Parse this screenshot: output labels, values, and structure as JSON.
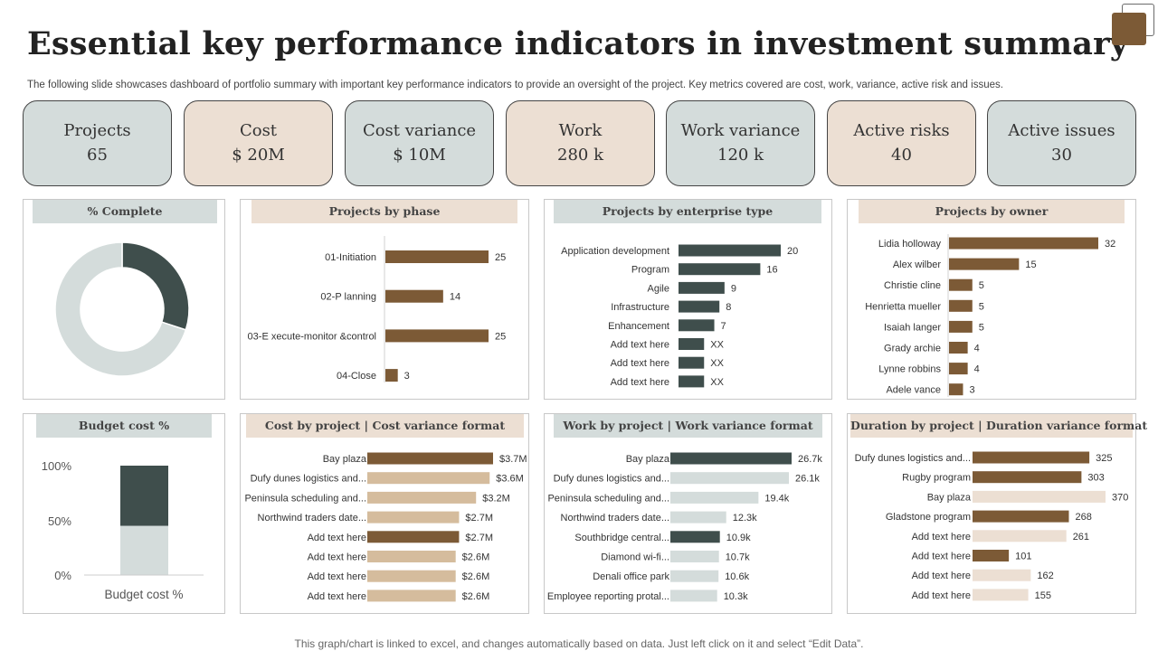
{
  "header": {
    "title": "Essential key performance indicators in investment summary",
    "subtitle": "The following slide showcases dashboard of portfolio summary with important key performance indicators to provide an oversight of the project. Key metrics covered are cost, work, variance, active risk and issues."
  },
  "kpis": [
    {
      "label": "Projects",
      "value": "65",
      "tone": "gray"
    },
    {
      "label": "Cost",
      "value": "$ 20M",
      "tone": "tan"
    },
    {
      "label": "Cost variance",
      "value": "$ 10M",
      "tone": "gray"
    },
    {
      "label": "Work",
      "value": "280 k",
      "tone": "tan"
    },
    {
      "label": "Work variance",
      "value": "120 k",
      "tone": "gray"
    },
    {
      "label": "Active risks",
      "value": "40",
      "tone": "tan"
    },
    {
      "label": "Active issues",
      "value": "30",
      "tone": "gray"
    }
  ],
  "colors": {
    "dark": "#3f4e4c",
    "brown": "#7c5a36",
    "lightgray": "#d4dcdb",
    "tan": "#d5bc9d",
    "lighttan": "#ecdfd3"
  },
  "chart_data": [
    {
      "id": "complete",
      "type": "pie",
      "title": "% Complete",
      "values": [
        30,
        70
      ],
      "colors": [
        "#3f4e4c",
        "#d4dcdb"
      ]
    },
    {
      "id": "phase",
      "type": "bar",
      "title": "Projects by phase",
      "categories": [
        "01-Initiation",
        "02-P lanning",
        "03-E xecute-monitor &control",
        "04-Close"
      ],
      "values": [
        25,
        14,
        25,
        3
      ],
      "labels": [
        "25",
        "14",
        "25",
        "3"
      ],
      "color": "#7c5a36",
      "xlim": [
        0,
        25
      ]
    },
    {
      "id": "enterprise",
      "type": "bar",
      "title": "Projects by enterprise type",
      "categories": [
        "Application development",
        "Program",
        "Agile",
        "Infrastructure",
        "Enhancement",
        "Add text here",
        "Add text here",
        "Add text here"
      ],
      "values": [
        20,
        16,
        9,
        8,
        7,
        5,
        5,
        5
      ],
      "labels": [
        "20",
        "16",
        "9",
        "8",
        "7",
        "XX",
        "XX",
        "XX"
      ],
      "color": "#3f4e4c",
      "xlim": [
        0,
        20
      ]
    },
    {
      "id": "owner",
      "type": "bar",
      "title": "Projects by owner",
      "categories": [
        "Lidia holloway",
        "Alex wilber",
        "Christie cline",
        "Henrietta mueller",
        "Isaiah langer",
        "Grady archie",
        "Lynne robbins",
        "Adele vance"
      ],
      "values": [
        32,
        15,
        5,
        5,
        5,
        4,
        4,
        3
      ],
      "labels": [
        "32",
        "15",
        "5",
        "5",
        "5",
        "4",
        "4",
        "3"
      ],
      "color": "#7c5a36",
      "xlim": [
        0,
        32
      ]
    },
    {
      "id": "budget",
      "type": "bar",
      "title": "Budget cost %",
      "categories": [
        "Budget cost %"
      ],
      "yticks": [
        "100%",
        "50%",
        "0%"
      ],
      "ylim": [
        0,
        100
      ],
      "stack": [
        {
          "value": 45,
          "color": "#d4dcdb"
        },
        {
          "value": 55,
          "color": "#3f4e4c"
        }
      ]
    },
    {
      "id": "cost",
      "type": "bar",
      "title": "Cost by project | Cost variance format",
      "categories": [
        "Bay plaza",
        "Dufy dunes logistics and...",
        "Peninsula scheduling and...",
        "Northwind traders date...",
        "Add text here",
        "Add text here",
        "Add text here",
        "Add text here"
      ],
      "values": [
        3.7,
        3.6,
        3.2,
        2.7,
        2.7,
        2.6,
        2.6,
        2.6
      ],
      "labels": [
        "$3.7M",
        "$3.6M",
        "$3.2M",
        "$2.7M",
        "$2.7M",
        "$2.6M",
        "$2.6M",
        "$2.6M"
      ],
      "colors": [
        "#7c5a36",
        "#d5bc9d",
        "#d5bc9d",
        "#d5bc9d",
        "#7c5a36",
        "#d5bc9d",
        "#d5bc9d",
        "#d5bc9d"
      ],
      "xlim": [
        0,
        3.7
      ]
    },
    {
      "id": "work",
      "type": "bar",
      "title": "Work by project | Work variance format",
      "categories": [
        "Bay plaza",
        "Dufy dunes logistics and...",
        "Peninsula scheduling and...",
        "Northwind traders date...",
        "Southbridge central...",
        "Diamond wi-fi...",
        "Denali office park",
        "Employee reporting protal..."
      ],
      "values": [
        26.7,
        26.1,
        19.4,
        12.3,
        10.9,
        10.7,
        10.6,
        10.3
      ],
      "labels": [
        "26.7k",
        "26.1k",
        "19.4k",
        "12.3k",
        "10.9k",
        "10.7k",
        "10.6k",
        "10.3k"
      ],
      "colors": [
        "#3f4e4c",
        "#d4dcdb",
        "#d4dcdb",
        "#d4dcdb",
        "#3f4e4c",
        "#d4dcdb",
        "#d4dcdb",
        "#d4dcdb"
      ],
      "xlim": [
        0,
        26.7
      ]
    },
    {
      "id": "duration",
      "type": "bar",
      "title": "Duration by project | Duration variance format",
      "categories": [
        "Dufy dunes logistics and...",
        "Rugby program",
        "Bay plaza",
        "Gladstone program",
        "Add text here",
        "Add text here",
        "Add text here",
        "Add text here"
      ],
      "values": [
        325,
        303,
        370,
        268,
        261,
        101,
        162,
        155
      ],
      "labels": [
        "325",
        "303",
        "370",
        "268",
        "261",
        "101",
        "162",
        "155"
      ],
      "colors": [
        "#7c5a36",
        "#7c5a36",
        "#ecdfd3",
        "#7c5a36",
        "#ecdfd3",
        "#7c5a36",
        "#ecdfd3",
        "#ecdfd3"
      ],
      "xlim": [
        0,
        370
      ]
    }
  ],
  "footer": {
    "note": "This graph/chart is linked to excel, and changes automatically based on data. Just left click on it and select “Edit Data”."
  }
}
